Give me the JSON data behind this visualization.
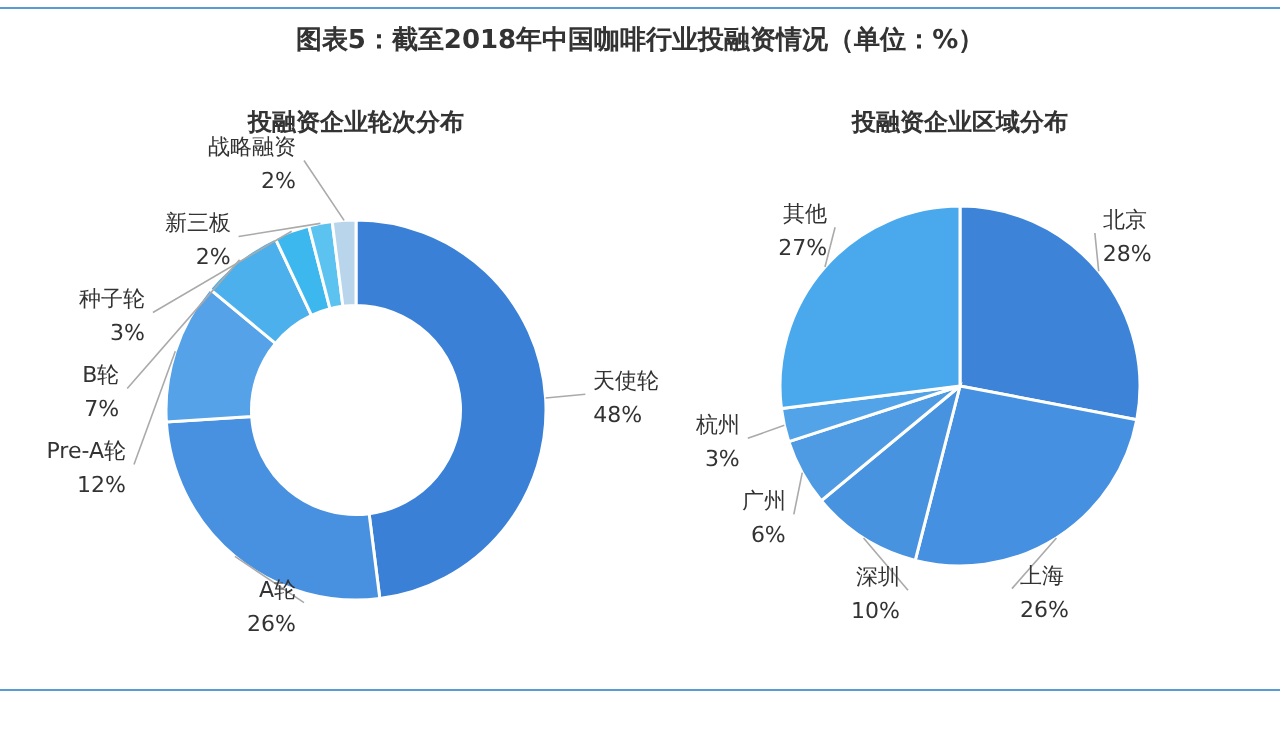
{
  "chart_data": [
    {
      "type": "donut",
      "title": "图表5：截至2018年中国咖啡行业投融资情况（单位：%）",
      "subtitle": "投融资企业轮次分布",
      "categories": [
        "天使轮",
        "A轮",
        "Pre-A轮",
        "B轮",
        "种子轮",
        "新三板",
        "战略融资"
      ],
      "values": [
        48,
        26,
        12,
        7,
        3,
        2,
        2
      ],
      "value_labels": [
        "48%",
        "26%",
        "12%",
        "7%",
        "3%",
        "2%",
        "2%"
      ],
      "colors": [
        "#3a80d6",
        "#4890e0",
        "#55a2e8",
        "#4bb0ec",
        "#3db8ef",
        "#5cc3f1",
        "#b9d5ec"
      ]
    },
    {
      "type": "pie",
      "title": "投融资企业区域分布",
      "categories": [
        "北京",
        "上海",
        "深圳",
        "广州",
        "杭州",
        "其他"
      ],
      "values": [
        28,
        26,
        10,
        6,
        3,
        27
      ],
      "value_labels": [
        "28%",
        "26%",
        "10%",
        "6%",
        "3%",
        "27%"
      ],
      "colors": [
        "#3d84d8",
        "#4590e0",
        "#4893e0",
        "#4e9be4",
        "#52a3e7",
        "#4aa9ec"
      ]
    }
  ]
}
